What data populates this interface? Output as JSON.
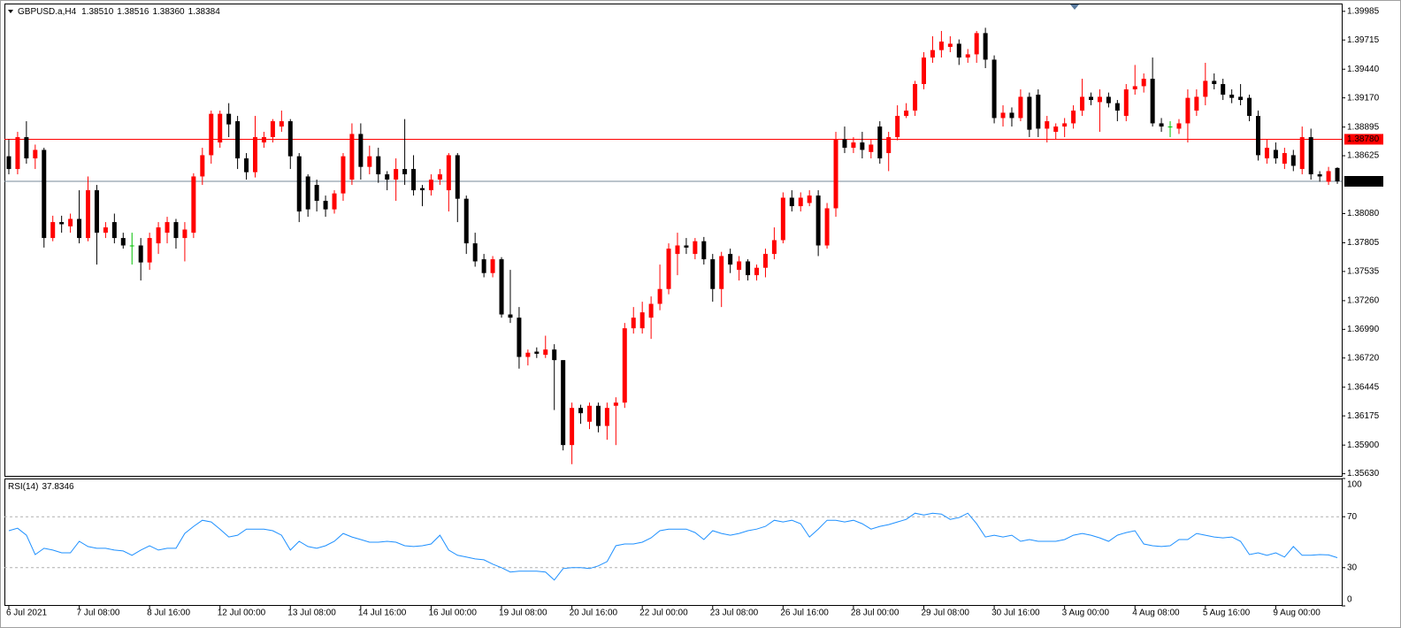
{
  "chart_data": [
    {
      "type": "candlestick",
      "title": "GBPUSD.a,H4",
      "ohlc_labels": [
        "1.38510",
        "1.38516",
        "1.38360",
        "1.38384"
      ],
      "categories": [
        "6 Jul 2021",
        null,
        null,
        null,
        null,
        null,
        null,
        null,
        "7 Jul 08:00",
        null,
        null,
        null,
        null,
        null,
        null,
        null,
        "8 Jul 16:00",
        null,
        null,
        null,
        null,
        null,
        null,
        null,
        "12 Jul 00:00",
        null,
        null,
        null,
        null,
        null,
        null,
        null,
        "13 Jul 08:00",
        null,
        null,
        null,
        null,
        null,
        null,
        null,
        "14 Jul 16:00",
        null,
        null,
        null,
        null,
        null,
        null,
        null,
        "16 Jul 00:00",
        null,
        null,
        null,
        null,
        null,
        null,
        null,
        "19 Jul 08:00",
        null,
        null,
        null,
        null,
        null,
        null,
        null,
        "20 Jul 16:00",
        null,
        null,
        null,
        null,
        null,
        null,
        null,
        "22 Jul 00:00",
        null,
        null,
        null,
        null,
        null,
        null,
        null,
        "23 Jul 08:00",
        null,
        null,
        null,
        null,
        null,
        null,
        null,
        "26 Jul 16:00",
        null,
        null,
        null,
        null,
        null,
        null,
        null,
        "28 Jul 00:00",
        null,
        null,
        null,
        null,
        null,
        null,
        null,
        "29 Jul 08:00",
        null,
        null,
        null,
        null,
        null,
        null,
        null,
        "30 Jul 16:00",
        null,
        null,
        null,
        null,
        null,
        null,
        null,
        "3 Aug 00:00",
        null,
        null,
        null,
        null,
        null,
        null,
        null,
        "4 Aug 08:00",
        null,
        null,
        null,
        null,
        null,
        null,
        null,
        "5 Aug 16:00",
        null,
        null,
        null,
        null,
        null,
        null,
        null,
        "9 Aug 00:00",
        null,
        null,
        null,
        null,
        null,
        null,
        null
      ],
      "open": [
        1.3862,
        1.385,
        1.388,
        1.386,
        1.3868,
        1.3785,
        1.38,
        1.3796,
        1.3803,
        1.3785,
        1.383,
        1.379,
        1.38,
        1.3785,
        1.3778,
        1.3778,
        1.3762,
        1.378,
        1.379,
        1.38,
        1.3785,
        1.379,
        1.3843,
        1.3863,
        1.3875,
        1.3902,
        1.3895,
        1.386,
        1.3847,
        1.3875,
        1.388,
        1.389,
        1.3895,
        1.3862,
        1.3843,
        1.3835,
        1.382,
        1.3812,
        1.3827,
        1.384,
        1.3883,
        1.3852,
        1.3862,
        1.3845,
        1.384,
        1.385,
        1.385,
        1.3832,
        1.383,
        1.384,
        1.383,
        1.3863,
        1.3822,
        1.378,
        1.3765,
        1.3752,
        1.3765,
        1.3713,
        1.371,
        1.3673,
        1.3678,
        1.3675,
        1.368,
        1.367,
        1.359,
        1.3625,
        1.3612,
        1.3627,
        1.3608,
        1.3627,
        1.363,
        1.37,
        1.37,
        1.371,
        1.3723,
        1.3737,
        1.377,
        1.3778,
        1.377,
        1.3782,
        1.3765,
        1.3737,
        1.377,
        1.3755,
        1.3763,
        1.375,
        1.3757,
        1.377,
        1.3783,
        1.3823,
        1.3815,
        1.3818,
        1.3825,
        1.3778,
        1.3813,
        1.3878,
        1.387,
        1.3875,
        1.3866,
        1.389,
        1.3865,
        1.388,
        1.39,
        1.3905,
        1.393,
        1.3955,
        1.3962,
        1.3965,
        1.3968,
        1.3955,
        1.3958,
        1.3978,
        1.3953,
        1.3898,
        1.3903,
        1.3898,
        1.3918,
        1.392,
        1.3888,
        1.3885,
        1.389,
        1.3893,
        1.3905,
        1.3918,
        1.3913,
        1.3918,
        1.3912,
        1.39,
        1.3925,
        1.3928,
        1.3935,
        1.3893,
        1.389,
        1.3888,
        1.3893,
        1.3905,
        1.3918,
        1.3933,
        1.393,
        1.392,
        1.3918,
        1.3917,
        1.39,
        1.386,
        1.3868,
        1.3855,
        1.3863,
        1.385,
        1.388,
        1.3845,
        1.3838,
        1.3851
      ],
      "high": [
        1.3878,
        1.3885,
        1.3895,
        1.3873,
        1.387,
        1.3806,
        1.3806,
        1.3808,
        1.383,
        1.3843,
        1.3835,
        1.38,
        1.3808,
        1.379,
        1.379,
        1.3785,
        1.379,
        1.38,
        1.3805,
        1.3803,
        1.38,
        1.3846,
        1.387,
        1.3905,
        1.3905,
        1.3912,
        1.39,
        1.3865,
        1.39,
        1.3885,
        1.3897,
        1.3905,
        1.3897,
        1.3865,
        1.3845,
        1.384,
        1.3825,
        1.383,
        1.3865,
        1.3893,
        1.3893,
        1.3872,
        1.387,
        1.3848,
        1.386,
        1.3897,
        1.3863,
        1.3835,
        1.3845,
        1.385,
        1.3865,
        1.3865,
        1.3825,
        1.379,
        1.377,
        1.3768,
        1.3767,
        1.3755,
        1.372,
        1.368,
        1.3682,
        1.3693,
        1.3685,
        1.367,
        1.363,
        1.3628,
        1.363,
        1.363,
        1.363,
        1.3635,
        1.3705,
        1.372,
        1.3725,
        1.373,
        1.376,
        1.378,
        1.379,
        1.3785,
        1.3785,
        1.3786,
        1.377,
        1.3772,
        1.3775,
        1.3768,
        1.3765,
        1.376,
        1.3775,
        1.3795,
        1.3828,
        1.383,
        1.3828,
        1.383,
        1.383,
        1.3818,
        1.3885,
        1.389,
        1.388,
        1.3885,
        1.3878,
        1.3895,
        1.3885,
        1.391,
        1.3912,
        1.3933,
        1.396,
        1.3975,
        1.398,
        1.3975,
        1.3972,
        1.3963,
        1.398,
        1.3983,
        1.3957,
        1.391,
        1.3908,
        1.3925,
        1.3922,
        1.3925,
        1.39,
        1.3893,
        1.3898,
        1.391,
        1.3935,
        1.3922,
        1.3925,
        1.3922,
        1.3915,
        1.393,
        1.3948,
        1.394,
        1.3955,
        1.3898,
        1.3895,
        1.3897,
        1.3925,
        1.3925,
        1.395,
        1.394,
        1.3935,
        1.3925,
        1.393,
        1.392,
        1.3905,
        1.3878,
        1.3875,
        1.387,
        1.3868,
        1.389,
        1.3888,
        1.3848,
        1.3852,
        1.38516
      ],
      "low": [
        1.3845,
        1.3845,
        1.3855,
        1.385,
        1.3776,
        1.3782,
        1.379,
        1.379,
        1.378,
        1.3782,
        1.376,
        1.3785,
        1.378,
        1.3775,
        1.376,
        1.3745,
        1.3755,
        1.377,
        1.378,
        1.3775,
        1.3763,
        1.3785,
        1.3835,
        1.3855,
        1.387,
        1.388,
        1.385,
        1.384,
        1.3842,
        1.387,
        1.3875,
        1.3885,
        1.385,
        1.38,
        1.3805,
        1.381,
        1.3805,
        1.3808,
        1.382,
        1.3835,
        1.384,
        1.3845,
        1.3837,
        1.383,
        1.382,
        1.3835,
        1.3825,
        1.3815,
        1.3825,
        1.3835,
        1.381,
        1.38,
        1.377,
        1.3758,
        1.3748,
        1.3748,
        1.371,
        1.3705,
        1.3662,
        1.3665,
        1.3672,
        1.3672,
        1.3623,
        1.3585,
        1.3572,
        1.361,
        1.3605,
        1.3602,
        1.3595,
        1.359,
        1.3625,
        1.3695,
        1.3695,
        1.369,
        1.3717,
        1.3732,
        1.375,
        1.377,
        1.3765,
        1.376,
        1.3725,
        1.372,
        1.3752,
        1.3745,
        1.3745,
        1.3745,
        1.3748,
        1.3765,
        1.378,
        1.381,
        1.381,
        1.3815,
        1.3768,
        1.3775,
        1.3805,
        1.3865,
        1.3865,
        1.386,
        1.386,
        1.3855,
        1.3848,
        1.3877,
        1.3898,
        1.39,
        1.3925,
        1.395,
        1.3955,
        1.396,
        1.3948,
        1.395,
        1.395,
        1.3945,
        1.3893,
        1.389,
        1.389,
        1.3895,
        1.388,
        1.388,
        1.3875,
        1.3878,
        1.388,
        1.3888,
        1.39,
        1.391,
        1.3885,
        1.3908,
        1.3895,
        1.3895,
        1.392,
        1.3922,
        1.389,
        1.3885,
        1.388,
        1.3883,
        1.3875,
        1.39,
        1.391,
        1.3925,
        1.3915,
        1.3912,
        1.391,
        1.3895,
        1.3858,
        1.3855,
        1.3855,
        1.385,
        1.3848,
        1.3845,
        1.384,
        1.3838,
        1.3835,
        1.3836
      ],
      "close": [
        1.385,
        1.388,
        1.386,
        1.3868,
        1.3785,
        1.38,
        1.3798,
        1.3803,
        1.3785,
        1.383,
        1.379,
        1.3795,
        1.3785,
        1.3778,
        1.3778,
        1.3762,
        1.3785,
        1.3795,
        1.38,
        1.3785,
        1.3793,
        1.3843,
        1.3863,
        1.3902,
        1.3902,
        1.3892,
        1.386,
        1.3847,
        1.388,
        1.388,
        1.3895,
        1.3895,
        1.3862,
        1.381,
        1.3812,
        1.382,
        1.3812,
        1.3827,
        1.3862,
        1.3883,
        1.3852,
        1.3862,
        1.3845,
        1.384,
        1.385,
        1.3845,
        1.383,
        1.383,
        1.384,
        1.3845,
        1.3863,
        1.3822,
        1.378,
        1.3763,
        1.3752,
        1.3765,
        1.3713,
        1.371,
        1.3673,
        1.3677,
        1.3676,
        1.368,
        1.367,
        1.359,
        1.3625,
        1.362,
        1.3627,
        1.3608,
        1.3625,
        1.363,
        1.37,
        1.371,
        1.3715,
        1.3723,
        1.3737,
        1.3775,
        1.3778,
        1.3776,
        1.3782,
        1.3765,
        1.3737,
        1.3768,
        1.376,
        1.3763,
        1.375,
        1.3757,
        1.377,
        1.3783,
        1.3823,
        1.3815,
        1.3823,
        1.3825,
        1.3778,
        1.3813,
        1.3878,
        1.387,
        1.3875,
        1.3868,
        1.3873,
        1.386,
        1.388,
        1.39,
        1.3905,
        1.393,
        1.3955,
        1.3962,
        1.397,
        1.3968,
        1.3955,
        1.3958,
        1.3978,
        1.3953,
        1.3898,
        1.3903,
        1.3898,
        1.3918,
        1.3887,
        1.3888,
        1.3895,
        1.389,
        1.3893,
        1.3905,
        1.3918,
        1.3915,
        1.3918,
        1.3912,
        1.3905,
        1.3925,
        1.3928,
        1.3935,
        1.3893,
        1.389,
        1.389,
        1.3893,
        1.3917,
        1.3918,
        1.3933,
        1.393,
        1.392,
        1.3917,
        1.3915,
        1.39,
        1.3863,
        1.387,
        1.386,
        1.3865,
        1.3853,
        1.388,
        1.3845,
        1.3843,
        1.3848,
        1.38384
      ],
      "up_color": "#ff0000",
      "down_color": "#000000",
      "doji_color": "#00c000",
      "ylim": [
        1.3561,
        1.4005
      ],
      "yticks": [
        1.39985,
        1.39715,
        {
          "value": 1.3944,
          "label": "1.39440"
        },
        {
          "value": 1.3917,
          "label": "1.39170"
        },
        1.38895,
        1.38625,
        {
          "value": 1.3808,
          "label": "1.38080"
        },
        1.37805,
        1.37535,
        {
          "value": 1.3726,
          "label": "1.37260"
        },
        {
          "value": 1.3699,
          "label": "1.36990"
        },
        {
          "value": 1.3672,
          "label": "1.36720"
        },
        1.36445,
        1.36175,
        {
          "value": 1.359,
          "label": "1.35900"
        },
        {
          "value": 1.3563,
          "label": "1.35630"
        }
      ],
      "lines": [
        {
          "value": 1.3878,
          "label": "1.38780",
          "color": "#ff0000"
        }
      ],
      "last_price": 1.38384,
      "last_price_color": "#778899"
    },
    {
      "type": "line",
      "title": "RSI(14)",
      "values": [
        59.0,
        61.0,
        55.5,
        40.3,
        45.2,
        43.8,
        41.7,
        41.7,
        50.7,
        46.6,
        45.2,
        45.2,
        43.8,
        43.1,
        39.7,
        43.8,
        47.2,
        43.8,
        45.2,
        45.2,
        56.9,
        62.4,
        67.2,
        65.9,
        60.3,
        54.1,
        55.5,
        60.3,
        60.3,
        60.3,
        59.0,
        55.5,
        43.8,
        50.7,
        46.6,
        45.2,
        47.2,
        50.7,
        56.9,
        54.1,
        52.1,
        50.0,
        50.0,
        50.7,
        50.0,
        47.2,
        46.6,
        47.2,
        48.6,
        55.5,
        43.8,
        39.7,
        38.3,
        36.9,
        36.2,
        32.8,
        30.0,
        26.6,
        27.2,
        27.2,
        27.2,
        26.6,
        20.3,
        29.3,
        30.0,
        30.0,
        29.3,
        31.4,
        34.8,
        47.2,
        48.6,
        48.6,
        50.0,
        53.4,
        59.0,
        60.3,
        60.3,
        60.3,
        57.6,
        52.1,
        59.0,
        56.9,
        55.5,
        56.9,
        59.0,
        60.3,
        62.4,
        67.2,
        65.9,
        67.2,
        64.5,
        54.1,
        60.3,
        67.2,
        67.2,
        65.9,
        67.2,
        64.5,
        60.3,
        62.4,
        63.8,
        65.9,
        67.9,
        72.8,
        71.4,
        72.8,
        72.1,
        67.9,
        69.3,
        72.8,
        64.5,
        54.1,
        55.5,
        54.1,
        55.5,
        50.7,
        52.1,
        50.7,
        50.7,
        50.7,
        52.1,
        55.5,
        56.9,
        55.5,
        53.4,
        50.7,
        55.5,
        57.6,
        59.0,
        48.6,
        47.2,
        46.6,
        47.2,
        52.1,
        52.1,
        56.9,
        55.5,
        54.1,
        53.4,
        54.1,
        50.7,
        40.3,
        41.7,
        39.7,
        41.7,
        38.3,
        46.6,
        39.7,
        39.7,
        40.3,
        40.0,
        37.8346
      ],
      "color": "#1e90ff",
      "ylim": [
        0,
        100
      ],
      "yticks": [
        100,
        70,
        30,
        0
      ],
      "levels": [
        70,
        30
      ]
    }
  ]
}
